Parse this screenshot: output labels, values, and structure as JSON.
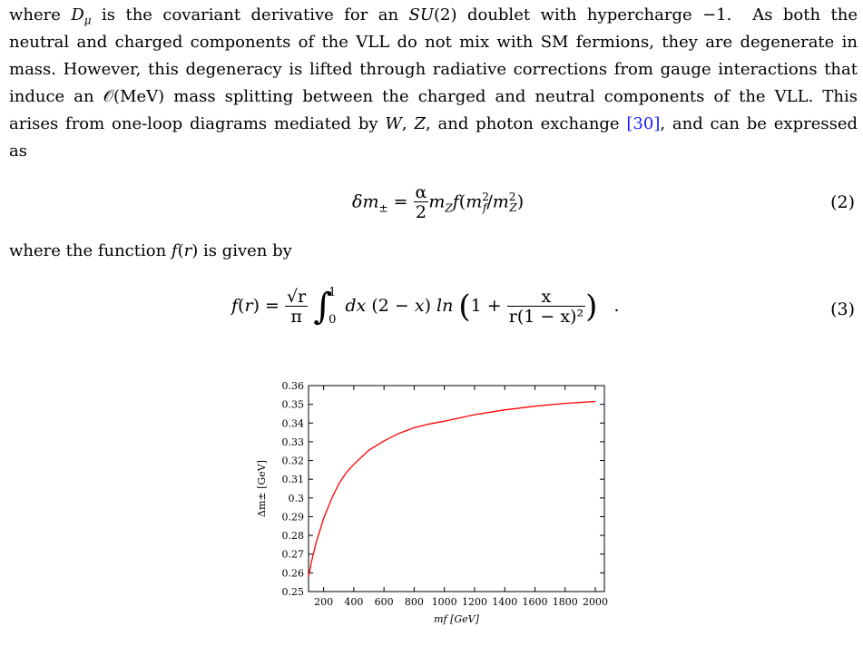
{
  "paragraph1": {
    "lines": [
      "where Dμ is the covariant derivative for an SU(2) doublet with hypercharge −1.  As both the",
      "neutral and charged components of the VLL do not mix with SM fermions, they are degenerate in",
      "mass. However, this degeneracy is lifted through radiative corrections from gauge interactions that",
      "induce an 𝒪(MeV) mass splitting between the charged and neutral components of the VLL. This",
      "arises from one-loop diagrams mediated by W, Z, and photon exchange ",
      "as"
    ],
    "citation": "[30]",
    "line5_tail": ", and can be expressed"
  },
  "equation2": {
    "lhs": "δm± =",
    "frac_num": "α",
    "frac_den": "2",
    "rhs": "mZ f(m²f /m²Z)",
    "number": "(2)"
  },
  "paragraph2": {
    "text": "where the function f(r) is given by"
  },
  "equation3": {
    "lhs": "f(r) =",
    "frac_num": "√r",
    "frac_den": "π",
    "integral_upper": "1",
    "integral_lower": "0",
    "integrand": "dx (2 − x) ln",
    "inner_frac_num": "x",
    "inner_frac_den": "r(1 − x)²",
    "trailing": ".",
    "number": "(3)"
  },
  "chart_data": {
    "type": "line",
    "xlabel": "mf [GeV]",
    "ylabel": "Δm± [GeV]",
    "xlim": [
      100,
      2060
    ],
    "ylim": [
      0.25,
      0.36
    ],
    "xticks": [
      200,
      400,
      600,
      800,
      1000,
      1200,
      1400,
      1600,
      1800,
      2000
    ],
    "yticks": [
      0.25,
      0.26,
      0.27,
      0.28,
      0.29,
      0.3,
      0.31,
      0.32,
      0.33,
      0.34,
      0.35,
      0.36
    ],
    "ytick_labels": [
      "0.25",
      "0.26",
      "0.27",
      "0.28",
      "0.29",
      "0.3",
      "0.31",
      "0.32",
      "0.33",
      "0.34",
      "0.35",
      "0.36"
    ],
    "line_color": "#ff0000",
    "series": [
      {
        "x": [
          100,
          120,
          150,
          200,
          250,
          300,
          350,
          400,
          500,
          600,
          700,
          800,
          900,
          1000,
          1200,
          1400,
          1600,
          1800,
          2000
        ],
        "y": [
          0.258,
          0.266,
          0.276,
          0.289,
          0.299,
          0.3075,
          0.3135,
          0.318,
          0.3255,
          0.3305,
          0.3345,
          0.3375,
          0.3395,
          0.341,
          0.3445,
          0.347,
          0.349,
          0.3505,
          0.3515
        ]
      }
    ]
  }
}
